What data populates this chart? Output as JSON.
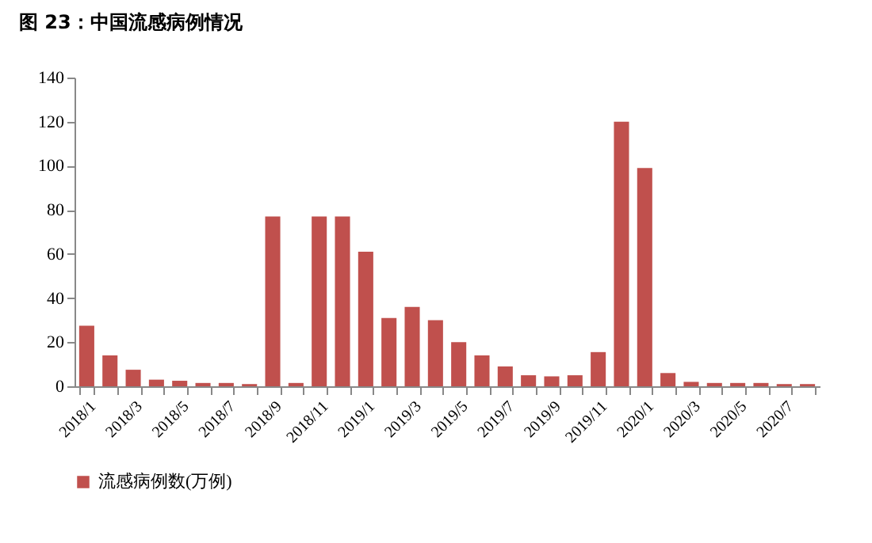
{
  "chart_data": {
    "type": "bar",
    "title": "图 23：中国流感病例情况",
    "categories": [
      "2018/1",
      null,
      "2018/3",
      null,
      "2018/5",
      null,
      "2018/7",
      null,
      "2018/9",
      null,
      "2018/11",
      null,
      "2019/1",
      null,
      "2019/3",
      null,
      "2019/5",
      null,
      "2019/7",
      null,
      "2019/9",
      null,
      "2019/11",
      null,
      "2020/1",
      null,
      "2020/3",
      null,
      "2020/5",
      null,
      "2020/7",
      null
    ],
    "series": [
      {
        "name": "流感病例数(万例)",
        "color": "#c0504d",
        "values": [
          27.5,
          14,
          7.5,
          3,
          2.5,
          1.5,
          1.5,
          1,
          77,
          1.5,
          77,
          77,
          61,
          31,
          36,
          30,
          20,
          14,
          9,
          5,
          4.5,
          5,
          15.5,
          120,
          99,
          6,
          2,
          1.5,
          1.5,
          1.5,
          1,
          1
        ]
      }
    ],
    "ylim": [
      0,
      140
    ],
    "yticks": [
      0,
      20,
      40,
      60,
      80,
      100,
      120,
      140
    ],
    "grid": false,
    "legend": "bottom"
  }
}
